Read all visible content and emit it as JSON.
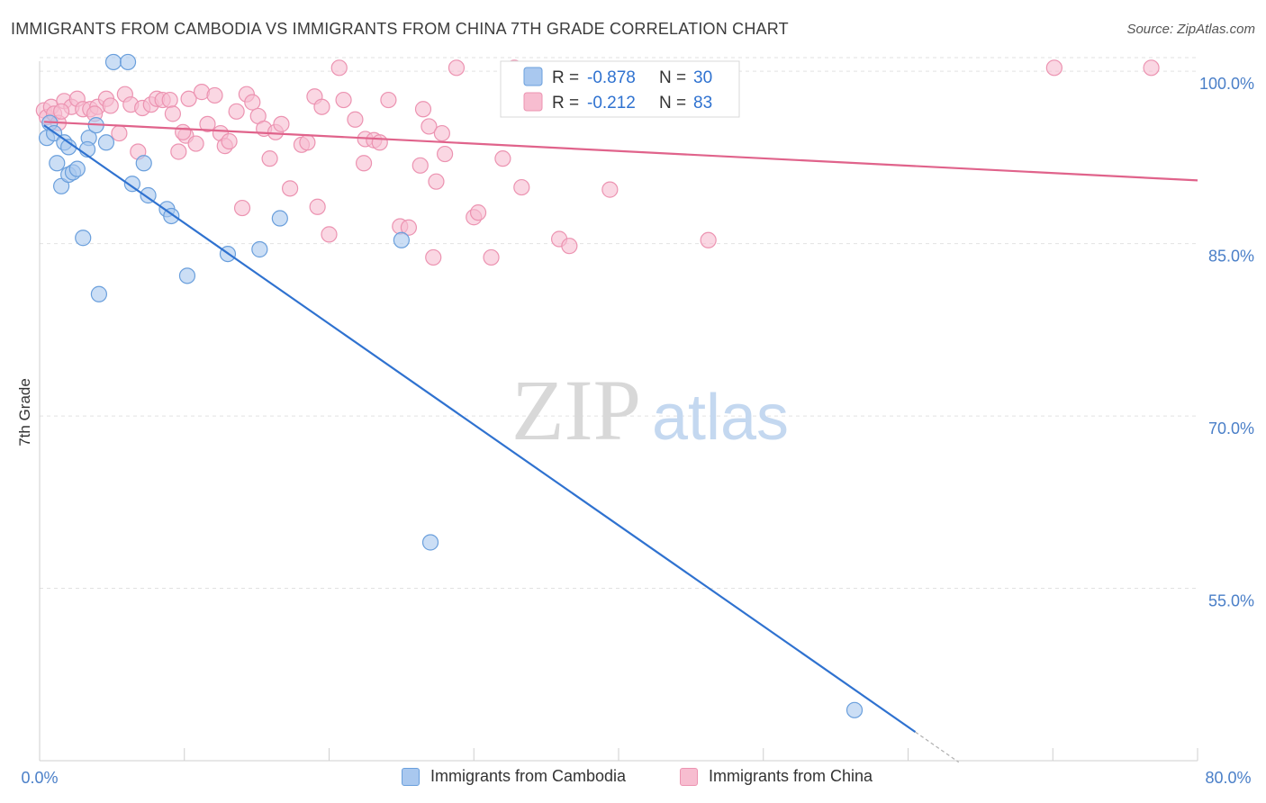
{
  "title": "IMMIGRANTS FROM CAMBODIA VS IMMIGRANTS FROM CHINA 7TH GRADE CORRELATION CHART",
  "source": "Source: ZipAtlas.com",
  "watermark": {
    "zip": "ZIP",
    "atlas": "atlas"
  },
  "colors": {
    "cambodia_fill": "#a9c8ef",
    "cambodia_stroke": "#6a9fdc",
    "cambodia_line": "#2f72d0",
    "china_fill": "#f7bdd0",
    "china_stroke": "#ec93b1",
    "china_line": "#e0638b",
    "tick_label": "#4a7fc8",
    "grid": "#e2e2e2"
  },
  "legend_box": {
    "rows": [
      {
        "r_label": "R =",
        "r_value": "-0.878",
        "n_label": "N =",
        "n_value": "30"
      },
      {
        "r_label": "R =",
        "r_value": "-0.212",
        "n_label": "N =",
        "n_value": "83"
      }
    ]
  },
  "legend_bottom": [
    "Immigrants from Cambodia",
    "Immigrants from China"
  ],
  "chart_data": {
    "type": "scatter",
    "title": "IMMIGRANTS FROM CAMBODIA VS IMMIGRANTS FROM CHINA 7TH GRADE CORRELATION CHART",
    "ylabel": "7th Grade",
    "xlabel": "",
    "xlim": [
      0,
      80
    ],
    "ylim": [
      40,
      101.5
    ],
    "x_tick_labels": [
      "0.0%",
      "80.0%"
    ],
    "y_ticks": [
      100,
      85,
      70,
      55
    ],
    "y_tick_labels": [
      "100.0%",
      "85.0%",
      "70.0%",
      "55.0%"
    ],
    "grid": true,
    "legend_position": "top-center",
    "series": [
      {
        "name": "Immigrants from Cambodia",
        "r": -0.878,
        "n": 30,
        "trend": {
          "x0": 0.3,
          "y0": 95.3,
          "x1": 60.5,
          "y1": 42.5,
          "dashed_to_x": 63.5
        },
        "points": [
          [
            0.5,
            94.2
          ],
          [
            0.7,
            95.5
          ],
          [
            1.0,
            94.6
          ],
          [
            1.2,
            92.0
          ],
          [
            1.5,
            90.0
          ],
          [
            1.7,
            93.8
          ],
          [
            2.0,
            91.0
          ],
          [
            2.3,
            91.2
          ],
          [
            2.6,
            91.5
          ],
          [
            3.0,
            85.5
          ],
          [
            3.4,
            94.2
          ],
          [
            3.9,
            95.3
          ],
          [
            4.6,
            93.8
          ],
          [
            5.1,
            100.8
          ],
          [
            6.1,
            100.8
          ],
          [
            6.4,
            90.2
          ],
          [
            7.2,
            92.0
          ],
          [
            7.5,
            89.2
          ],
          [
            8.8,
            88.0
          ],
          [
            9.1,
            87.4
          ],
          [
            10.2,
            82.2
          ],
          [
            13.0,
            84.1
          ],
          [
            15.2,
            84.5
          ],
          [
            16.6,
            87.2
          ],
          [
            25.0,
            85.3
          ],
          [
            27.0,
            59.0
          ],
          [
            4.1,
            80.6
          ],
          [
            56.3,
            44.4
          ],
          [
            2.0,
            93.4
          ],
          [
            3.3,
            93.2
          ]
        ]
      },
      {
        "name": "Immigrants from China",
        "r": -0.212,
        "n": 83,
        "trend": {
          "x0": 0.3,
          "y0": 95.6,
          "x1": 80,
          "y1": 90.5
        },
        "points": [
          [
            0.3,
            96.6
          ],
          [
            0.5,
            96.0
          ],
          [
            0.8,
            96.9
          ],
          [
            1.0,
            96.3
          ],
          [
            1.3,
            95.5
          ],
          [
            1.7,
            97.4
          ],
          [
            2.2,
            96.9
          ],
          [
            2.6,
            97.6
          ],
          [
            3.0,
            96.7
          ],
          [
            3.5,
            96.7
          ],
          [
            4.0,
            96.9
          ],
          [
            4.6,
            97.6
          ],
          [
            4.9,
            97.0
          ],
          [
            5.5,
            94.6
          ],
          [
            5.9,
            98.0
          ],
          [
            6.3,
            97.1
          ],
          [
            6.8,
            93.0
          ],
          [
            7.1,
            96.8
          ],
          [
            7.7,
            97.1
          ],
          [
            8.1,
            97.6
          ],
          [
            8.5,
            97.5
          ],
          [
            9.0,
            97.5
          ],
          [
            9.2,
            96.3
          ],
          [
            9.6,
            93.0
          ],
          [
            10.1,
            94.4
          ],
          [
            10.3,
            97.6
          ],
          [
            10.8,
            93.7
          ],
          [
            11.2,
            98.2
          ],
          [
            11.6,
            95.4
          ],
          [
            12.1,
            97.9
          ],
          [
            12.5,
            94.6
          ],
          [
            12.8,
            93.5
          ],
          [
            13.1,
            93.9
          ],
          [
            13.6,
            96.5
          ],
          [
            14.0,
            88.1
          ],
          [
            14.3,
            98.0
          ],
          [
            14.7,
            97.3
          ],
          [
            15.1,
            96.1
          ],
          [
            15.5,
            95.0
          ],
          [
            15.9,
            92.4
          ],
          [
            16.3,
            94.7
          ],
          [
            16.7,
            95.4
          ],
          [
            17.3,
            89.8
          ],
          [
            18.1,
            93.6
          ],
          [
            18.5,
            93.8
          ],
          [
            19.0,
            97.8
          ],
          [
            19.2,
            88.2
          ],
          [
            19.5,
            96.9
          ],
          [
            20.0,
            85.8
          ],
          [
            20.7,
            100.3
          ],
          [
            21.0,
            97.5
          ],
          [
            21.8,
            95.8
          ],
          [
            22.4,
            92.0
          ],
          [
            22.5,
            94.1
          ],
          [
            23.1,
            94.0
          ],
          [
            23.5,
            93.8
          ],
          [
            24.1,
            97.5
          ],
          [
            24.9,
            86.5
          ],
          [
            25.5,
            86.4
          ],
          [
            26.3,
            91.8
          ],
          [
            26.5,
            96.7
          ],
          [
            26.9,
            95.2
          ],
          [
            27.4,
            90.4
          ],
          [
            27.8,
            94.6
          ],
          [
            27.2,
            83.8
          ],
          [
            28.0,
            92.8
          ],
          [
            28.8,
            100.3
          ],
          [
            30.0,
            87.3
          ],
          [
            30.3,
            87.7
          ],
          [
            31.2,
            83.8
          ],
          [
            32.0,
            92.4
          ],
          [
            32.8,
            100.3
          ],
          [
            33.3,
            89.9
          ],
          [
            35.9,
            85.4
          ],
          [
            36.2,
            100.2
          ],
          [
            36.6,
            84.8
          ],
          [
            39.4,
            89.7
          ],
          [
            46.2,
            85.3
          ],
          [
            70.1,
            100.3
          ],
          [
            76.8,
            100.3
          ],
          [
            3.8,
            96.3
          ],
          [
            9.9,
            94.7
          ],
          [
            1.5,
            96.5
          ]
        ]
      }
    ]
  }
}
